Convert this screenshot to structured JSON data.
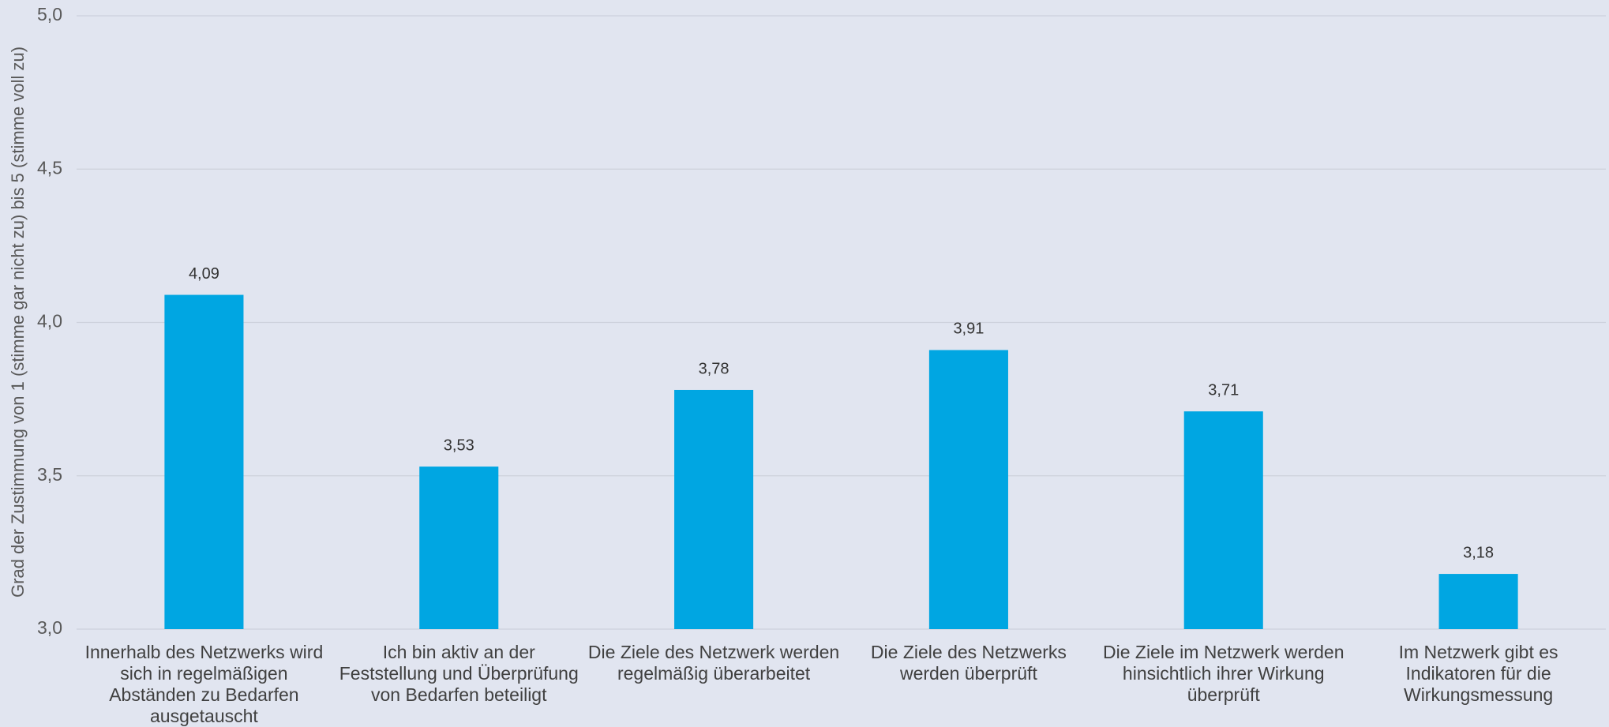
{
  "chart_data": {
    "type": "bar",
    "y_label": "Grad der Zustimmung von 1 (stimme gar nicht zu) bis 5 (stimme voll zu)",
    "categories": [
      "Innerhalb des Netzwerks wird sich in regelmäßigen Abständen zu Bedarfen ausgetauscht",
      "Ich bin aktiv an der Feststellung und Überprüfung von Bedarfen beteiligt",
      "Die Ziele des Netzwerk werden regelmäßig überarbeitet",
      "Die Ziele des Netzwerks werden überprüft",
      "Die Ziele im Netzwerk werden hinsichtlich ihrer Wirkung überprüft",
      "Im Netzwerk gibt es Indikatoren für die Wirkungsmessung"
    ],
    "values": [
      4.09,
      3.53,
      3.78,
      3.91,
      3.71,
      3.18
    ],
    "value_labels": [
      "4,09",
      "3,53",
      "3,78",
      "3,91",
      "3,71",
      "3,18"
    ],
    "color": "#00a6e2",
    "ylim": [
      3,
      5
    ],
    "yticks": [
      {
        "value": 3,
        "label": "3,0"
      },
      {
        "value": 3.5,
        "label": "3,5"
      },
      {
        "value": 4,
        "label": "4,0"
      },
      {
        "value": 4.5,
        "label": "4,5"
      },
      {
        "value": 5,
        "label": "5,0"
      }
    ],
    "grid": true
  }
}
